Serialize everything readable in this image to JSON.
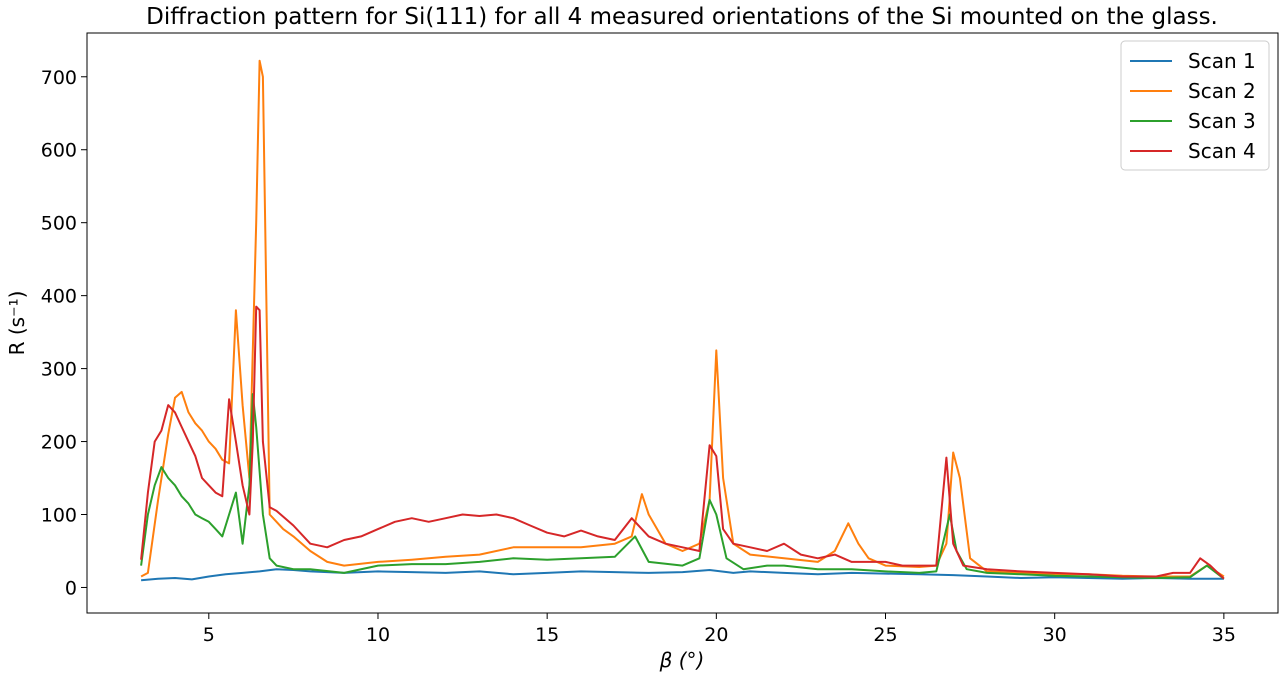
{
  "chart_data": {
    "type": "line",
    "title": "Diffraction pattern for Si(111) for all 4 measured orientations of the Si mounted on the glass.",
    "xlabel": "β (°)",
    "ylabel": "R (s⁻¹)",
    "xlim": [
      1.4,
      36.6
    ],
    "ylim": [
      -35,
      760
    ],
    "xticks": [
      5,
      10,
      15,
      20,
      25,
      30,
      35
    ],
    "yticks": [
      0,
      100,
      200,
      300,
      400,
      500,
      600,
      700
    ],
    "grid": false,
    "legend_position": "top-right",
    "colors": [
      "#1f77b4",
      "#ff7f0e",
      "#2ca02c",
      "#d62728"
    ],
    "series": [
      {
        "name": "Scan 1",
        "points": [
          [
            3.0,
            10
          ],
          [
            3.5,
            12
          ],
          [
            4.0,
            13
          ],
          [
            4.5,
            11
          ],
          [
            5.0,
            15
          ],
          [
            5.5,
            18
          ],
          [
            6.0,
            20
          ],
          [
            6.5,
            22
          ],
          [
            7.0,
            25
          ],
          [
            7.5,
            24
          ],
          [
            8.0,
            22
          ],
          [
            9.0,
            20
          ],
          [
            10.0,
            22
          ],
          [
            11.0,
            21
          ],
          [
            12.0,
            20
          ],
          [
            13.0,
            22
          ],
          [
            14.0,
            18
          ],
          [
            15.0,
            20
          ],
          [
            16.0,
            22
          ],
          [
            17.0,
            21
          ],
          [
            18.0,
            20
          ],
          [
            19.0,
            21
          ],
          [
            19.8,
            24
          ],
          [
            20.5,
            20
          ],
          [
            21.0,
            22
          ],
          [
            22.0,
            20
          ],
          [
            23.0,
            18
          ],
          [
            24.0,
            20
          ],
          [
            25.0,
            19
          ],
          [
            26.0,
            18
          ],
          [
            27.0,
            17
          ],
          [
            28.0,
            15
          ],
          [
            29.0,
            13
          ],
          [
            30.0,
            14
          ],
          [
            31.0,
            13
          ],
          [
            32.0,
            12
          ],
          [
            33.0,
            13
          ],
          [
            34.0,
            12
          ],
          [
            35.0,
            12
          ]
        ]
      },
      {
        "name": "Scan 2",
        "points": [
          [
            3.0,
            15
          ],
          [
            3.2,
            20
          ],
          [
            3.5,
            120
          ],
          [
            3.8,
            210
          ],
          [
            4.0,
            260
          ],
          [
            4.2,
            268
          ],
          [
            4.4,
            240
          ],
          [
            4.6,
            225
          ],
          [
            4.8,
            215
          ],
          [
            5.0,
            200
          ],
          [
            5.2,
            190
          ],
          [
            5.4,
            175
          ],
          [
            5.6,
            170
          ],
          [
            5.8,
            380
          ],
          [
            6.0,
            250
          ],
          [
            6.2,
            150
          ],
          [
            6.4,
            500
          ],
          [
            6.5,
            722
          ],
          [
            6.6,
            700
          ],
          [
            6.7,
            400
          ],
          [
            6.8,
            100
          ],
          [
            7.0,
            90
          ],
          [
            7.2,
            80
          ],
          [
            7.5,
            70
          ],
          [
            8.0,
            50
          ],
          [
            8.5,
            35
          ],
          [
            9.0,
            30
          ],
          [
            10.0,
            35
          ],
          [
            11.0,
            38
          ],
          [
            12.0,
            42
          ],
          [
            13.0,
            45
          ],
          [
            14.0,
            55
          ],
          [
            15.0,
            55
          ],
          [
            16.0,
            55
          ],
          [
            17.0,
            60
          ],
          [
            17.5,
            70
          ],
          [
            17.8,
            128
          ],
          [
            18.0,
            100
          ],
          [
            18.5,
            60
          ],
          [
            19.0,
            50
          ],
          [
            19.5,
            60
          ],
          [
            19.8,
            120
          ],
          [
            20.0,
            325
          ],
          [
            20.2,
            150
          ],
          [
            20.5,
            60
          ],
          [
            21.0,
            45
          ],
          [
            22.0,
            40
          ],
          [
            23.0,
            35
          ],
          [
            23.5,
            50
          ],
          [
            23.9,
            88
          ],
          [
            24.2,
            60
          ],
          [
            24.5,
            40
          ],
          [
            25.0,
            30
          ],
          [
            26.0,
            28
          ],
          [
            26.5,
            30
          ],
          [
            26.8,
            60
          ],
          [
            27.0,
            185
          ],
          [
            27.2,
            150
          ],
          [
            27.5,
            40
          ],
          [
            28.0,
            22
          ],
          [
            29.0,
            20
          ],
          [
            30.0,
            18
          ],
          [
            31.0,
            18
          ],
          [
            32.0,
            16
          ],
          [
            33.0,
            15
          ],
          [
            34.0,
            15
          ],
          [
            34.5,
            30
          ],
          [
            35.0,
            15
          ]
        ]
      },
      {
        "name": "Scan 3",
        "points": [
          [
            3.0,
            30
          ],
          [
            3.2,
            100
          ],
          [
            3.4,
            140
          ],
          [
            3.6,
            165
          ],
          [
            3.8,
            150
          ],
          [
            4.0,
            140
          ],
          [
            4.2,
            125
          ],
          [
            4.4,
            115
          ],
          [
            4.6,
            100
          ],
          [
            4.8,
            95
          ],
          [
            5.0,
            90
          ],
          [
            5.2,
            80
          ],
          [
            5.4,
            70
          ],
          [
            5.6,
            100
          ],
          [
            5.8,
            130
          ],
          [
            6.0,
            60
          ],
          [
            6.2,
            140
          ],
          [
            6.3,
            265
          ],
          [
            6.4,
            220
          ],
          [
            6.6,
            100
          ],
          [
            6.8,
            40
          ],
          [
            7.0,
            30
          ],
          [
            7.5,
            25
          ],
          [
            8.0,
            25
          ],
          [
            9.0,
            20
          ],
          [
            10.0,
            30
          ],
          [
            11.0,
            32
          ],
          [
            12.0,
            32
          ],
          [
            13.0,
            35
          ],
          [
            14.0,
            40
          ],
          [
            15.0,
            38
          ],
          [
            16.0,
            40
          ],
          [
            17.0,
            42
          ],
          [
            17.6,
            70
          ],
          [
            18.0,
            35
          ],
          [
            19.0,
            30
          ],
          [
            19.5,
            40
          ],
          [
            19.8,
            120
          ],
          [
            20.0,
            100
          ],
          [
            20.3,
            40
          ],
          [
            20.8,
            25
          ],
          [
            21.5,
            30
          ],
          [
            22.0,
            30
          ],
          [
            23.0,
            25
          ],
          [
            24.0,
            25
          ],
          [
            25.0,
            22
          ],
          [
            26.0,
            20
          ],
          [
            26.5,
            22
          ],
          [
            26.9,
            100
          ],
          [
            27.1,
            50
          ],
          [
            27.4,
            25
          ],
          [
            28.0,
            20
          ],
          [
            29.0,
            18
          ],
          [
            30.0,
            16
          ],
          [
            31.0,
            15
          ],
          [
            32.0,
            14
          ],
          [
            33.0,
            13
          ],
          [
            34.0,
            14
          ],
          [
            34.5,
            30
          ],
          [
            35.0,
            12
          ]
        ]
      },
      {
        "name": "Scan 4",
        "points": [
          [
            3.0,
            38
          ],
          [
            3.2,
            130
          ],
          [
            3.4,
            200
          ],
          [
            3.6,
            215
          ],
          [
            3.8,
            250
          ],
          [
            4.0,
            240
          ],
          [
            4.2,
            220
          ],
          [
            4.4,
            200
          ],
          [
            4.6,
            180
          ],
          [
            4.8,
            150
          ],
          [
            5.0,
            140
          ],
          [
            5.2,
            130
          ],
          [
            5.4,
            125
          ],
          [
            5.6,
            258
          ],
          [
            5.8,
            200
          ],
          [
            6.0,
            140
          ],
          [
            6.2,
            100
          ],
          [
            6.3,
            200
          ],
          [
            6.4,
            385
          ],
          [
            6.5,
            380
          ],
          [
            6.6,
            200
          ],
          [
            6.8,
            110
          ],
          [
            7.0,
            105
          ],
          [
            7.5,
            85
          ],
          [
            8.0,
            60
          ],
          [
            8.5,
            55
          ],
          [
            9.0,
            65
          ],
          [
            9.5,
            70
          ],
          [
            10.0,
            80
          ],
          [
            10.5,
            90
          ],
          [
            11.0,
            95
          ],
          [
            11.5,
            90
          ],
          [
            12.0,
            95
          ],
          [
            12.5,
            100
          ],
          [
            13.0,
            98
          ],
          [
            13.5,
            100
          ],
          [
            14.0,
            95
          ],
          [
            14.5,
            85
          ],
          [
            15.0,
            75
          ],
          [
            15.5,
            70
          ],
          [
            16.0,
            78
          ],
          [
            16.5,
            70
          ],
          [
            17.0,
            65
          ],
          [
            17.5,
            95
          ],
          [
            18.0,
            70
          ],
          [
            18.5,
            60
          ],
          [
            19.0,
            55
          ],
          [
            19.5,
            50
          ],
          [
            19.8,
            195
          ],
          [
            20.0,
            180
          ],
          [
            20.2,
            80
          ],
          [
            20.5,
            60
          ],
          [
            21.0,
            55
          ],
          [
            21.5,
            50
          ],
          [
            22.0,
            60
          ],
          [
            22.5,
            45
          ],
          [
            23.0,
            40
          ],
          [
            23.5,
            45
          ],
          [
            24.0,
            35
          ],
          [
            24.5,
            35
          ],
          [
            25.0,
            35
          ],
          [
            25.5,
            30
          ],
          [
            26.0,
            30
          ],
          [
            26.5,
            30
          ],
          [
            26.8,
            178
          ],
          [
            27.0,
            60
          ],
          [
            27.3,
            30
          ],
          [
            28.0,
            25
          ],
          [
            29.0,
            22
          ],
          [
            30.0,
            20
          ],
          [
            31.0,
            18
          ],
          [
            32.0,
            15
          ],
          [
            33.0,
            15
          ],
          [
            33.5,
            20
          ],
          [
            34.0,
            20
          ],
          [
            34.3,
            40
          ],
          [
            34.6,
            30
          ],
          [
            35.0,
            12
          ]
        ]
      }
    ]
  }
}
